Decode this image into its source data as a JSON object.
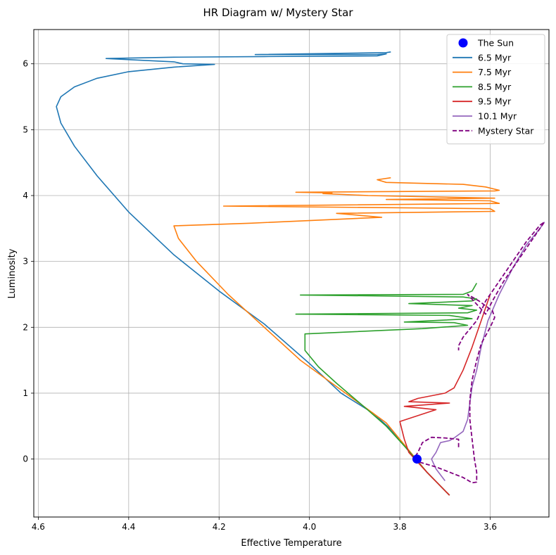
{
  "chart_data": {
    "type": "line",
    "title": "HR Diagram w/ Mystery Star",
    "xlabel": "Effective Temperature",
    "ylabel": "Luminosity",
    "x_inverted": true,
    "xlim": [
      4.61,
      3.47
    ],
    "ylim": [
      -0.88,
      6.52
    ],
    "xticks": [
      4.6,
      4.4,
      4.2,
      4.0,
      3.8,
      3.6
    ],
    "xtick_labels": [
      "4.6",
      "4.4",
      "4.2",
      "4.0",
      "3.8",
      "3.6"
    ],
    "yticks": [
      0,
      1,
      2,
      3,
      4,
      5,
      6
    ],
    "ytick_labels": [
      "0",
      "1",
      "2",
      "3",
      "4",
      "5",
      "6"
    ],
    "grid": true,
    "legend_position": "top-right",
    "colors": {
      "sun": "#0000ff",
      "6.5": "#1f77b4",
      "7.5": "#ff7f0e",
      "8.5": "#2ca02c",
      "9.5": "#d62728",
      "10.1": "#9467bd",
      "mystery": "#800080"
    },
    "sun": {
      "name": "The Sun",
      "x": 3.762,
      "y": 0.0
    },
    "series": [
      {
        "name": "6.5 Myr",
        "color": "#1f77b4",
        "dash": false,
        "points": [
          [
            3.69,
            -0.55
          ],
          [
            3.74,
            -0.2
          ],
          [
            3.79,
            0.2
          ],
          [
            3.82,
            0.45
          ],
          [
            3.86,
            0.7
          ],
          [
            3.93,
            1.0
          ],
          [
            4.0,
            1.45
          ],
          [
            4.1,
            2.05
          ],
          [
            4.2,
            2.55
          ],
          [
            4.3,
            3.1
          ],
          [
            4.4,
            3.75
          ],
          [
            4.47,
            4.3
          ],
          [
            4.52,
            4.75
          ],
          [
            4.55,
            5.1
          ],
          [
            4.56,
            5.35
          ],
          [
            4.55,
            5.5
          ],
          [
            4.52,
            5.65
          ],
          [
            4.47,
            5.78
          ],
          [
            4.4,
            5.88
          ],
          [
            4.3,
            5.95
          ],
          [
            4.21,
            5.99
          ],
          [
            4.28,
            6.0
          ],
          [
            4.3,
            6.03
          ],
          [
            4.45,
            6.08
          ],
          [
            4.3,
            6.1
          ],
          [
            4.1,
            6.11
          ],
          [
            3.85,
            6.12
          ],
          [
            3.83,
            6.15
          ],
          [
            3.85,
            6.14
          ],
          [
            4.12,
            6.14
          ],
          [
            3.83,
            6.17
          ],
          [
            3.82,
            6.18
          ]
        ]
      },
      {
        "name": "7.5 Myr",
        "color": "#ff7f0e",
        "dash": false,
        "points": [
          [
            3.69,
            -0.55
          ],
          [
            3.74,
            -0.2
          ],
          [
            3.8,
            0.3
          ],
          [
            3.83,
            0.55
          ],
          [
            3.87,
            0.75
          ],
          [
            3.94,
            1.1
          ],
          [
            4.02,
            1.5
          ],
          [
            4.1,
            2.0
          ],
          [
            4.18,
            2.5
          ],
          [
            4.25,
            3.0
          ],
          [
            4.29,
            3.35
          ],
          [
            4.3,
            3.54
          ],
          [
            4.13,
            3.58
          ],
          [
            3.84,
            3.67
          ],
          [
            3.94,
            3.73
          ],
          [
            3.59,
            3.76
          ],
          [
            3.6,
            3.8
          ],
          [
            4.19,
            3.84
          ],
          [
            3.58,
            3.88
          ],
          [
            3.6,
            3.92
          ],
          [
            3.83,
            3.94
          ],
          [
            3.59,
            3.96
          ],
          [
            3.87,
            4.0
          ],
          [
            3.97,
            4.03
          ],
          [
            3.95,
            4.04
          ],
          [
            4.03,
            4.05
          ],
          [
            3.59,
            4.07
          ],
          [
            3.58,
            4.08
          ],
          [
            3.61,
            4.13
          ],
          [
            3.66,
            4.17
          ],
          [
            3.83,
            4.2
          ],
          [
            3.85,
            4.24
          ],
          [
            3.82,
            4.27
          ]
        ]
      },
      {
        "name": "8.5 Myr",
        "color": "#2ca02c",
        "dash": false,
        "points": [
          [
            3.69,
            -0.55
          ],
          [
            3.74,
            -0.2
          ],
          [
            3.79,
            0.2
          ],
          [
            3.83,
            0.5
          ],
          [
            3.88,
            0.8
          ],
          [
            3.94,
            1.15
          ],
          [
            3.98,
            1.4
          ],
          [
            4.01,
            1.65
          ],
          [
            4.01,
            1.8
          ],
          [
            4.01,
            1.9
          ],
          [
            3.75,
            1.98
          ],
          [
            3.65,
            2.03
          ],
          [
            3.68,
            2.07
          ],
          [
            3.79,
            2.08
          ],
          [
            3.64,
            2.13
          ],
          [
            3.69,
            2.18
          ],
          [
            4.03,
            2.2
          ],
          [
            3.65,
            2.22
          ],
          [
            3.63,
            2.26
          ],
          [
            3.67,
            2.29
          ],
          [
            3.64,
            2.33
          ],
          [
            3.78,
            2.36
          ],
          [
            3.64,
            2.4
          ],
          [
            3.63,
            2.43
          ],
          [
            3.66,
            2.46
          ],
          [
            4.02,
            2.49
          ],
          [
            3.66,
            2.5
          ],
          [
            3.64,
            2.55
          ],
          [
            3.63,
            2.67
          ]
        ]
      },
      {
        "name": "9.5 Myr",
        "color": "#d62728",
        "dash": false,
        "points": [
          [
            3.69,
            -0.55
          ],
          [
            3.74,
            -0.2
          ],
          [
            3.78,
            0.1
          ],
          [
            3.79,
            0.3
          ],
          [
            3.8,
            0.57
          ],
          [
            3.72,
            0.75
          ],
          [
            3.79,
            0.8
          ],
          [
            3.69,
            0.85
          ],
          [
            3.78,
            0.87
          ],
          [
            3.76,
            0.92
          ],
          [
            3.7,
            1.0
          ],
          [
            3.68,
            1.08
          ],
          [
            3.66,
            1.35
          ],
          [
            3.64,
            1.7
          ],
          [
            3.62,
            2.1
          ],
          [
            3.6,
            2.5
          ]
        ]
      },
      {
        "name": "10.1 Myr",
        "color": "#9467bd",
        "dash": false,
        "points": [
          [
            3.7,
            -0.33
          ],
          [
            3.72,
            -0.15
          ],
          [
            3.73,
            0.0
          ],
          [
            3.72,
            0.1
          ],
          [
            3.71,
            0.25
          ],
          [
            3.69,
            0.28
          ],
          [
            3.68,
            0.32
          ],
          [
            3.66,
            0.42
          ],
          [
            3.65,
            0.6
          ],
          [
            3.645,
            0.85
          ],
          [
            3.64,
            1.1
          ],
          [
            3.63,
            1.35
          ],
          [
            3.62,
            1.7
          ],
          [
            3.605,
            2.1
          ],
          [
            3.58,
            2.5
          ],
          [
            3.55,
            2.9
          ],
          [
            3.52,
            3.25
          ],
          [
            3.49,
            3.5
          ],
          [
            3.48,
            3.6
          ]
        ]
      },
      {
        "name": "Mystery Star",
        "color": "#800080",
        "dash": true,
        "points": [
          [
            3.77,
            -0.03
          ],
          [
            3.755,
            -0.05
          ],
          [
            3.72,
            -0.12
          ],
          [
            3.66,
            -0.28
          ],
          [
            3.64,
            -0.36
          ],
          [
            3.63,
            -0.35
          ],
          [
            3.63,
            -0.2
          ],
          [
            3.635,
            0.0
          ],
          [
            3.64,
            0.3
          ],
          [
            3.645,
            0.6
          ],
          [
            3.645,
            0.9
          ],
          [
            3.64,
            1.2
          ],
          [
            3.63,
            1.5
          ],
          [
            3.62,
            1.75
          ],
          [
            3.6,
            2.0
          ],
          [
            3.59,
            2.15
          ],
          [
            3.595,
            2.25
          ],
          [
            3.625,
            2.4
          ],
          [
            3.65,
            2.5
          ],
          [
            3.63,
            2.35
          ],
          [
            3.61,
            2.2
          ],
          [
            3.595,
            2.4
          ],
          [
            3.57,
            2.7
          ],
          [
            3.54,
            3.0
          ],
          [
            3.51,
            3.3
          ],
          [
            3.49,
            3.5
          ],
          [
            3.48,
            3.6
          ],
          [
            3.49,
            3.55
          ],
          [
            3.52,
            3.3
          ],
          [
            3.55,
            3.0
          ],
          [
            3.58,
            2.7
          ],
          [
            3.61,
            2.4
          ],
          [
            3.63,
            2.1
          ],
          [
            3.66,
            1.85
          ],
          [
            3.67,
            1.72
          ],
          [
            3.67,
            1.65
          ]
        ]
      },
      {
        "name": "",
        "color": "#800080",
        "dash": true,
        "legend": false,
        "points": [
          [
            3.67,
            0.18
          ],
          [
            3.67,
            0.3
          ],
          [
            3.7,
            0.32
          ],
          [
            3.73,
            0.33
          ],
          [
            3.75,
            0.25
          ],
          [
            3.76,
            0.1
          ],
          [
            3.77,
            0.0
          ]
        ]
      }
    ]
  }
}
